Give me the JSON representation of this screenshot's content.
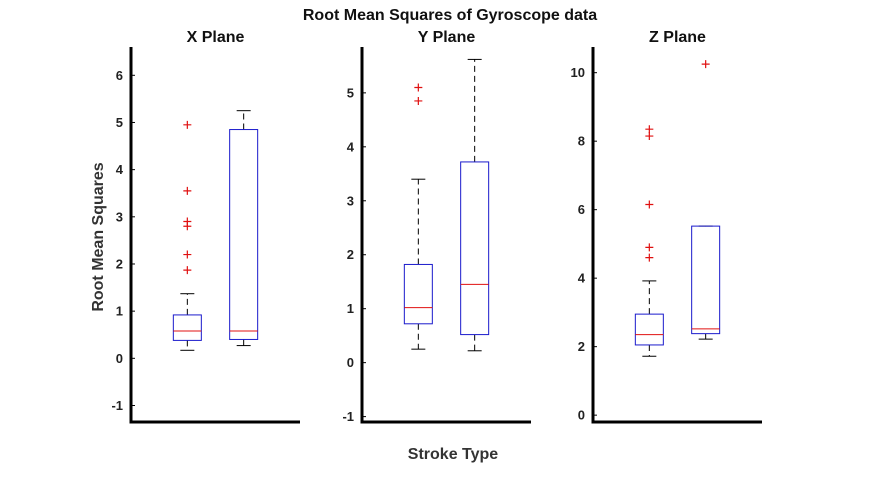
{
  "figure": {
    "title": "Root Mean Squares of Gyroscope data",
    "xlabel": "Stroke Type",
    "ylabel": "Root Mean Squares"
  },
  "colors": {
    "box": "#1a1acc",
    "median": "#e01010",
    "outlier": "#e01010",
    "whisker": "#000000",
    "axis": "#000000"
  },
  "chart_data": [
    {
      "type": "boxplot",
      "title": "X Plane",
      "ylim": [
        -1.35,
        6.6
      ],
      "yticks": [
        -1,
        0,
        1,
        2,
        3,
        4,
        5,
        6
      ],
      "boxes": [
        {
          "min": 0.17,
          "q1": 0.38,
          "median": 0.58,
          "q3": 0.92,
          "max": 1.37,
          "outliers": [
            1.87,
            2.2,
            2.8,
            2.9,
            3.55,
            4.95
          ]
        },
        {
          "min": 0.27,
          "q1": 0.4,
          "median": 0.58,
          "q3": 4.85,
          "max": 5.25,
          "outliers": []
        }
      ]
    },
    {
      "type": "boxplot",
      "title": "Y Plane",
      "ylim": [
        -1.1,
        5.85
      ],
      "yticks": [
        -1,
        0,
        1,
        2,
        3,
        4,
        5
      ],
      "boxes": [
        {
          "min": 0.25,
          "q1": 0.72,
          "median": 1.02,
          "q3": 1.82,
          "max": 3.4,
          "outliers": [
            4.85,
            5.1
          ]
        },
        {
          "min": 0.22,
          "q1": 0.52,
          "median": 1.45,
          "q3": 3.72,
          "max": 5.62,
          "outliers": []
        }
      ]
    },
    {
      "type": "boxplot",
      "title": "Z Plane",
      "ylim": [
        -0.2,
        10.75
      ],
      "yticks": [
        0,
        2,
        4,
        6,
        8,
        10
      ],
      "boxes": [
        {
          "min": 1.72,
          "q1": 2.05,
          "median": 2.35,
          "q3": 2.95,
          "max": 3.92,
          "outliers": [
            4.6,
            4.9,
            6.15,
            8.15,
            8.35
          ]
        },
        {
          "min": 2.22,
          "q1": 2.38,
          "median": 2.52,
          "q3": 5.52,
          "max": 5.52,
          "outliers": [
            10.25
          ]
        }
      ]
    }
  ]
}
